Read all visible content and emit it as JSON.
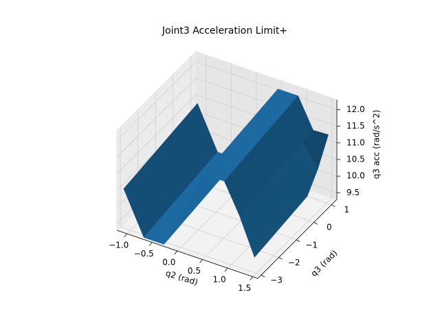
{
  "chart_data": {
    "type": "surface",
    "title": "Joint3 Acceleration Limit+",
    "xlabel": "q2 (rad)",
    "ylabel": "q3 (rad)",
    "zlabel": "q3 acc (rad/s^2)",
    "color": "#1f77b4",
    "x": [
      -1.1,
      -0.7,
      -0.3,
      0.1,
      0.5,
      0.9,
      1.2,
      1.5
    ],
    "y": [
      -3.1,
      -2.5,
      -1.9,
      -1.3,
      -0.7,
      -0.1,
      0.5,
      1.1
    ],
    "z": [
      [
        10.55,
        9.29,
        9.29,
        10.55,
        11.81,
        11.81,
        10.93,
        9.83
      ],
      [
        10.6,
        9.34,
        9.34,
        10.6,
        11.86,
        11.86,
        10.98,
        9.88
      ],
      [
        10.65,
        9.39,
        9.39,
        10.65,
        11.91,
        11.91,
        11.03,
        9.93
      ],
      [
        10.7,
        9.44,
        9.44,
        10.7,
        11.96,
        11.96,
        11.08,
        9.98
      ],
      [
        10.75,
        9.49,
        9.49,
        10.75,
        12.01,
        12.01,
        11.13,
        10.03
      ],
      [
        10.8,
        9.54,
        9.54,
        10.8,
        12.06,
        12.06,
        11.18,
        10.08
      ],
      [
        10.85,
        9.59,
        9.59,
        10.85,
        12.11,
        12.11,
        11.23,
        10.58
      ],
      [
        10.9,
        9.64,
        9.64,
        10.9,
        12.16,
        12.16,
        11.28,
        11.3
      ]
    ],
    "xlim": [
      -1.2,
      1.6
    ],
    "ylim": [
      -3.2,
      1.3
    ],
    "zlim": [
      9.3,
      12.3
    ],
    "xticks": [
      {
        "value": -1,
        "label": "−1.0"
      },
      {
        "value": -0.5,
        "label": "−0.5"
      },
      {
        "value": 0,
        "label": "0.0"
      },
      0.5,
      {
        "value": 1,
        "label": "1.0"
      },
      1.5
    ],
    "yticks": [
      {
        "value": -3,
        "label": "−3"
      },
      {
        "value": -2,
        "label": "−2"
      },
      {
        "value": -1,
        "label": "−1"
      },
      0,
      1
    ],
    "zticks": [
      9.5,
      {
        "value": 10,
        "label": "10.0"
      },
      10.5,
      {
        "value": 11,
        "label": "11.0"
      },
      11.5,
      {
        "value": 12,
        "label": "12.0"
      }
    ],
    "grid": true
  }
}
